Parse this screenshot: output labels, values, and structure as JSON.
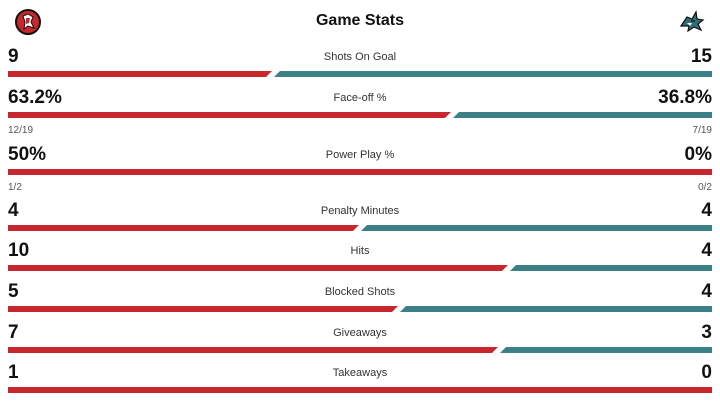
{
  "header": {
    "title": "Game Stats",
    "home_logo": "devils-logo-icon",
    "away_logo": "sharks-logo-icon"
  },
  "colors": {
    "home": "#c8272d",
    "away": "#3b7f87"
  },
  "stats": [
    {
      "label": "Shots On Goal",
      "home": "9",
      "away": "15",
      "home_share": 0.375
    },
    {
      "label": "Face-off %",
      "home": "63.2%",
      "away": "36.8%",
      "home_share": 0.632,
      "home_sub": "12/19",
      "away_sub": "7/19"
    },
    {
      "label": "Power Play %",
      "home": "50%",
      "away": "0%",
      "home_share": 1.0,
      "home_sub": "1/2",
      "away_sub": "0/2"
    },
    {
      "label": "Penalty Minutes",
      "home": "4",
      "away": "4",
      "home_share": 0.5
    },
    {
      "label": "Hits",
      "home": "10",
      "away": "4",
      "home_share": 0.714
    },
    {
      "label": "Blocked Shots",
      "home": "5",
      "away": "4",
      "home_share": 0.556
    },
    {
      "label": "Giveaways",
      "home": "7",
      "away": "3",
      "home_share": 0.7
    },
    {
      "label": "Takeaways",
      "home": "1",
      "away": "0",
      "home_share": 1.0
    }
  ]
}
